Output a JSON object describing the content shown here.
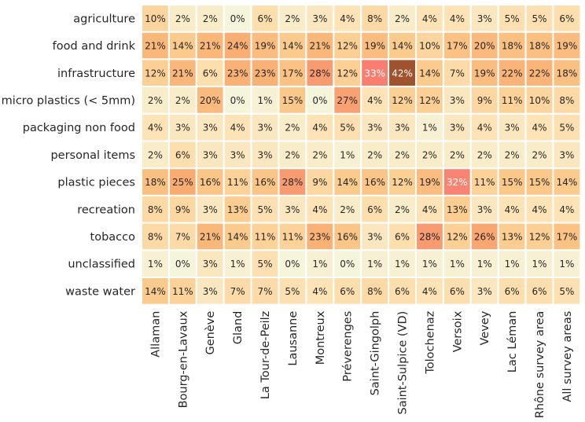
{
  "chart_data": {
    "type": "heatmap",
    "title": "",
    "xlabel": "",
    "ylabel": "",
    "rows": [
      "agriculture",
      "food and drink",
      "infrastructure",
      "micro plastics (< 5mm)",
      "packaging non food",
      "personal items",
      "plastic pieces",
      "recreation",
      "tobacco",
      "unclassified",
      "waste water"
    ],
    "columns": [
      "Allaman",
      "Bourg-en-Lavaux",
      "Genève",
      "Gland",
      "La Tour-de-Peilz",
      "Lausanne",
      "Montreux",
      "Préverenges",
      "Saint-Gingolph",
      "Saint-Sulpice (VD)",
      "Tolochenaz",
      "Versoix",
      "Vevey",
      "Lac Léman",
      "Rhône survey area",
      "All survey areas"
    ],
    "values": [
      [
        10,
        2,
        2,
        0,
        6,
        2,
        3,
        4,
        8,
        2,
        4,
        4,
        3,
        5,
        5,
        6
      ],
      [
        21,
        14,
        21,
        24,
        19,
        14,
        21,
        12,
        19,
        14,
        10,
        17,
        20,
        18,
        18,
        19
      ],
      [
        12,
        21,
        6,
        23,
        23,
        17,
        28,
        12,
        33,
        42,
        14,
        7,
        19,
        22,
        22,
        18
      ],
      [
        2,
        2,
        20,
        0,
        1,
        15,
        0,
        27,
        4,
        12,
        12,
        3,
        9,
        11,
        10,
        8
      ],
      [
        4,
        3,
        3,
        4,
        3,
        2,
        4,
        5,
        3,
        3,
        1,
        3,
        4,
        3,
        4,
        5
      ],
      [
        2,
        6,
        3,
        3,
        3,
        2,
        2,
        1,
        2,
        2,
        2,
        2,
        2,
        2,
        2,
        3
      ],
      [
        18,
        25,
        16,
        11,
        16,
        28,
        9,
        14,
        16,
        12,
        19,
        32,
        11,
        15,
        15,
        14
      ],
      [
        8,
        9,
        3,
        13,
        5,
        3,
        4,
        2,
        6,
        2,
        4,
        13,
        3,
        4,
        4,
        4
      ],
      [
        8,
        7,
        21,
        14,
        11,
        11,
        23,
        16,
        3,
        6,
        28,
        12,
        26,
        13,
        12,
        17
      ],
      [
        1,
        0,
        3,
        1,
        5,
        0,
        1,
        0,
        1,
        1,
        1,
        1,
        1,
        1,
        1,
        1
      ],
      [
        14,
        11,
        3,
        7,
        7,
        5,
        4,
        6,
        8,
        6,
        4,
        6,
        3,
        6,
        6,
        5
      ]
    ],
    "value_suffix": "%",
    "colorscale": [
      "#f5f5dc",
      "#fde2b4",
      "#fbc98a",
      "#f9ab70",
      "#fa8072",
      "#a0522d"
    ],
    "grid": true,
    "legend": "none"
  }
}
